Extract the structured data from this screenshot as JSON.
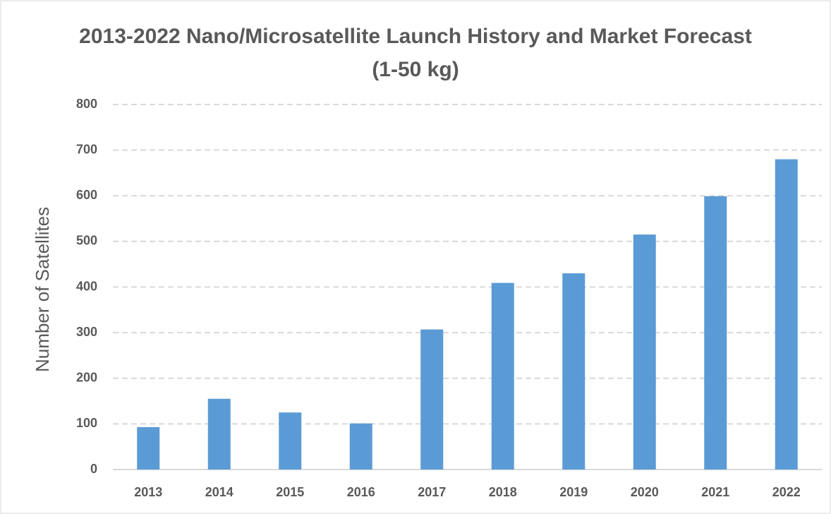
{
  "chart_data": {
    "type": "bar",
    "title": "2013-2022 Nano/Microsatellite Launch History and Market Forecast (1-50 kg)",
    "y_label": "Number of Satellites",
    "categories": [
      "2013",
      "2014",
      "2015",
      "2016",
      "2017",
      "2018",
      "2019",
      "2020",
      "2021",
      "2022"
    ],
    "values": [
      93,
      155,
      125,
      101,
      307,
      409,
      430,
      515,
      599,
      680
    ],
    "color": "#5b9bd5",
    "ylim": [
      0,
      800
    ],
    "yticks": [
      0,
      100,
      200,
      300,
      400,
      500,
      600,
      700,
      800
    ],
    "grid": true
  }
}
